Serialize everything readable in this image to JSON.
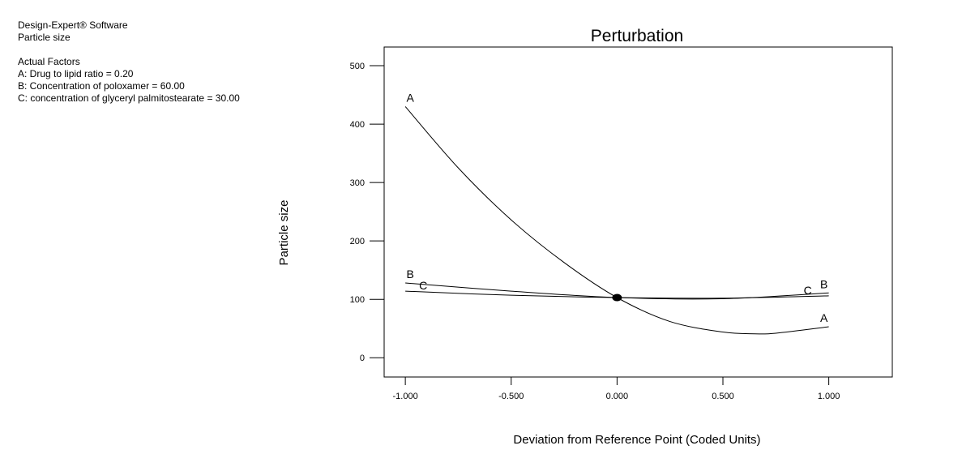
{
  "info": {
    "software": "Design-Expert® Software",
    "response": "Particle size",
    "factors_heading": "Actual Factors",
    "factors": [
      "A: Drug to lipid ratio = 0.20",
      "B: Concentration of poloxamer = 60.00",
      "C: concentration of glyceryl palmitostearate = 30.00"
    ]
  },
  "chart_data": {
    "type": "line",
    "title": "Perturbation",
    "xlabel": "Deviation from Reference Point (Coded Units)",
    "ylabel": "Particle size",
    "xlim": [
      -1.1,
      1.3
    ],
    "ylim": [
      -33,
      532
    ],
    "x_ticks": [
      -1,
      -0.5,
      0,
      0.5,
      1
    ],
    "x_tick_labels": [
      "-1.000",
      "-0.500",
      "0.000",
      "0.500",
      "1.000"
    ],
    "y_ticks": [
      0,
      100,
      200,
      300,
      400,
      500
    ],
    "y_tick_labels": [
      "0",
      "100",
      "200",
      "300",
      "400",
      "500"
    ],
    "grid": false,
    "reference_point": {
      "x": 0,
      "y": 103
    },
    "series": [
      {
        "name": "A",
        "x": [
          -1,
          -0.75,
          -0.5,
          -0.25,
          0,
          0.25,
          0.5,
          0.65,
          0.75,
          1
        ],
        "y": [
          430,
          325,
          236,
          163,
          103,
          62,
          44,
          41,
          42,
          53
        ]
      },
      {
        "name": "B",
        "x": [
          -1,
          -0.5,
          0,
          0.5,
          1
        ],
        "y": [
          128,
          114,
          103,
          101,
          111
        ]
      },
      {
        "name": "C",
        "x": [
          -1,
          -0.5,
          0,
          0.5,
          1
        ],
        "y": [
          114,
          107,
          103,
          102,
          106
        ]
      }
    ]
  }
}
